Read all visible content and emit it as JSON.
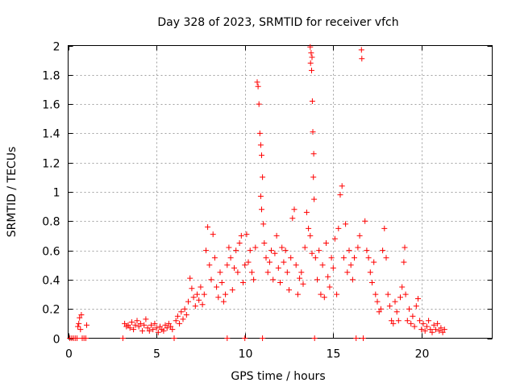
{
  "chart_data": {
    "type": "scatter",
    "title": "Day 328 of 2023, SRMTID for receiver vfch",
    "xlabel": "GPS time / hours",
    "ylabel": "SRMTID / TECUs",
    "xlim": [
      0,
      24
    ],
    "ylim": [
      0,
      2
    ],
    "xticks": [
      0,
      5,
      10,
      15,
      20
    ],
    "xtick_labels": [
      "0",
      "5",
      "10",
      "15",
      "20"
    ],
    "yticks": [
      0,
      0.2,
      0.4,
      0.6,
      0.8,
      1,
      1.2,
      1.4,
      1.6,
      1.8,
      2
    ],
    "ytick_labels": [
      "0",
      "0.2",
      "0.4",
      "0.6",
      "0.8",
      "1",
      "1.2",
      "1.4",
      "1.6",
      "1.8",
      "2"
    ],
    "grid": true,
    "marker": "+",
    "color": "#ff0000",
    "series": [
      {
        "name": "SRMTID",
        "points": [
          [
            0.1,
            0.0
          ],
          [
            0.2,
            0.0
          ],
          [
            0.3,
            0.0
          ],
          [
            0.4,
            0.0
          ],
          [
            0.5,
            0.0
          ],
          [
            0.55,
            0.08
          ],
          [
            0.6,
            0.1
          ],
          [
            0.65,
            0.14
          ],
          [
            0.7,
            0.06
          ],
          [
            0.75,
            0.16
          ],
          [
            0.8,
            0.0
          ],
          [
            0.9,
            0.0
          ],
          [
            1.0,
            0.0
          ],
          [
            1.05,
            0.09
          ],
          [
            3.1,
            0.0
          ],
          [
            3.2,
            0.1
          ],
          [
            3.3,
            0.08
          ],
          [
            3.4,
            0.09
          ],
          [
            3.5,
            0.07
          ],
          [
            3.6,
            0.11
          ],
          [
            3.7,
            0.06
          ],
          [
            3.8,
            0.09
          ],
          [
            3.9,
            0.12
          ],
          [
            4.0,
            0.08
          ],
          [
            4.1,
            0.1
          ],
          [
            4.2,
            0.05
          ],
          [
            4.3,
            0.09
          ],
          [
            4.4,
            0.13
          ],
          [
            4.5,
            0.07
          ],
          [
            4.6,
            0.05
          ],
          [
            4.7,
            0.09
          ],
          [
            4.8,
            0.06
          ],
          [
            4.9,
            0.1
          ],
          [
            5.0,
            0.07
          ],
          [
            5.1,
            0.04
          ],
          [
            5.2,
            0.08
          ],
          [
            5.3,
            0.06
          ],
          [
            5.4,
            0.05
          ],
          [
            5.5,
            0.09
          ],
          [
            5.6,
            0.07
          ],
          [
            5.7,
            0.1
          ],
          [
            5.8,
            0.08
          ],
          [
            5.9,
            0.06
          ],
          [
            6.0,
            0.0
          ],
          [
            6.1,
            0.12
          ],
          [
            6.2,
            0.15
          ],
          [
            6.3,
            0.1
          ],
          [
            6.4,
            0.18
          ],
          [
            6.5,
            0.13
          ],
          [
            6.6,
            0.2
          ],
          [
            6.7,
            0.16
          ],
          [
            6.8,
            0.25
          ],
          [
            6.9,
            0.41
          ],
          [
            7.0,
            0.34
          ],
          [
            7.1,
            0.28
          ],
          [
            7.2,
            0.22
          ],
          [
            7.3,
            0.3
          ],
          [
            7.4,
            0.26
          ],
          [
            7.5,
            0.35
          ],
          [
            7.6,
            0.23
          ],
          [
            7.7,
            0.3
          ],
          [
            7.8,
            0.6
          ],
          [
            7.9,
            0.76
          ],
          [
            8.0,
            0.5
          ],
          [
            8.1,
            0.4
          ],
          [
            8.2,
            0.71
          ],
          [
            8.3,
            0.55
          ],
          [
            8.4,
            0.35
          ],
          [
            8.5,
            0.28
          ],
          [
            8.6,
            0.45
          ],
          [
            8.7,
            0.38
          ],
          [
            8.8,
            0.25
          ],
          [
            8.9,
            0.3
          ],
          [
            9.0,
            0.0
          ],
          [
            9.0,
            0.5
          ],
          [
            9.1,
            0.62
          ],
          [
            9.2,
            0.55
          ],
          [
            9.3,
            0.33
          ],
          [
            9.4,
            0.48
          ],
          [
            9.5,
            0.6
          ],
          [
            9.6,
            0.45
          ],
          [
            9.7,
            0.65
          ],
          [
            9.8,
            0.7
          ],
          [
            9.9,
            0.38
          ],
          [
            10.0,
            0.0
          ],
          [
            10.0,
            0.5
          ],
          [
            10.1,
            0.71
          ],
          [
            10.2,
            0.52
          ],
          [
            10.3,
            0.6
          ],
          [
            10.4,
            0.45
          ],
          [
            10.5,
            0.4
          ],
          [
            10.6,
            0.62
          ],
          [
            10.7,
            1.75
          ],
          [
            10.75,
            1.72
          ],
          [
            10.8,
            1.6
          ],
          [
            10.85,
            1.4
          ],
          [
            10.9,
            1.32
          ],
          [
            10.95,
            1.25
          ],
          [
            11.0,
            1.1
          ],
          [
            10.9,
            0.97
          ],
          [
            10.95,
            0.88
          ],
          [
            11.0,
            0.0
          ],
          [
            11.05,
            0.78
          ],
          [
            11.1,
            0.65
          ],
          [
            11.2,
            0.55
          ],
          [
            11.3,
            0.45
          ],
          [
            11.4,
            0.52
          ],
          [
            11.5,
            0.6
          ],
          [
            11.6,
            0.4
          ],
          [
            11.7,
            0.58
          ],
          [
            11.8,
            0.7
          ],
          [
            11.9,
            0.48
          ],
          [
            12.0,
            0.38
          ],
          [
            12.1,
            0.62
          ],
          [
            12.2,
            0.52
          ],
          [
            12.3,
            0.6
          ],
          [
            12.4,
            0.45
          ],
          [
            12.5,
            0.33
          ],
          [
            12.6,
            0.55
          ],
          [
            12.7,
            0.82
          ],
          [
            12.8,
            0.88
          ],
          [
            12.9,
            0.5
          ],
          [
            13.0,
            0.3
          ],
          [
            13.1,
            0.41
          ],
          [
            13.2,
            0.45
          ],
          [
            13.3,
            0.37
          ],
          [
            13.4,
            0.62
          ],
          [
            13.5,
            0.86
          ],
          [
            13.6,
            0.75
          ],
          [
            13.7,
            0.7
          ],
          [
            13.8,
            0.58
          ],
          [
            13.7,
            1.99
          ],
          [
            13.75,
            1.95
          ],
          [
            13.8,
            1.92
          ],
          [
            13.72,
            1.88
          ],
          [
            13.78,
            1.83
          ],
          [
            13.82,
            1.62
          ],
          [
            13.85,
            1.41
          ],
          [
            13.9,
            1.26
          ],
          [
            13.88,
            1.1
          ],
          [
            13.92,
            0.95
          ],
          [
            13.95,
            0.0
          ],
          [
            14.0,
            0.55
          ],
          [
            14.1,
            0.4
          ],
          [
            14.2,
            0.6
          ],
          [
            14.3,
            0.3
          ],
          [
            14.4,
            0.5
          ],
          [
            14.5,
            0.28
          ],
          [
            14.6,
            0.65
          ],
          [
            14.7,
            0.42
          ],
          [
            14.8,
            0.35
          ],
          [
            14.9,
            0.55
          ],
          [
            15.0,
            0.48
          ],
          [
            15.1,
            0.68
          ],
          [
            15.2,
            0.3
          ],
          [
            15.3,
            0.75
          ],
          [
            15.4,
            0.98
          ],
          [
            15.5,
            1.04
          ],
          [
            15.6,
            0.55
          ],
          [
            15.7,
            0.78
          ],
          [
            15.8,
            0.45
          ],
          [
            15.9,
            0.6
          ],
          [
            16.0,
            0.5
          ],
          [
            16.1,
            0.4
          ],
          [
            16.2,
            0.55
          ],
          [
            16.3,
            0.0
          ],
          [
            16.4,
            0.62
          ],
          [
            16.5,
            0.7
          ],
          [
            16.6,
            1.97
          ],
          [
            16.62,
            1.91
          ],
          [
            16.7,
            0.0
          ],
          [
            16.8,
            0.8
          ],
          [
            16.9,
            0.6
          ],
          [
            17.0,
            0.55
          ],
          [
            17.1,
            0.45
          ],
          [
            17.2,
            0.38
          ],
          [
            17.3,
            0.52
          ],
          [
            17.4,
            0.3
          ],
          [
            17.5,
            0.25
          ],
          [
            17.6,
            0.18
          ],
          [
            17.7,
            0.2
          ],
          [
            17.8,
            0.6
          ],
          [
            17.9,
            0.75
          ],
          [
            18.0,
            0.55
          ],
          [
            18.1,
            0.3
          ],
          [
            18.2,
            0.22
          ],
          [
            18.3,
            0.12
          ],
          [
            18.4,
            0.1
          ],
          [
            18.5,
            0.25
          ],
          [
            18.6,
            0.18
          ],
          [
            18.7,
            0.12
          ],
          [
            18.8,
            0.28
          ],
          [
            18.9,
            0.35
          ],
          [
            19.0,
            0.52
          ],
          [
            19.05,
            0.62
          ],
          [
            19.1,
            0.3
          ],
          [
            19.2,
            0.12
          ],
          [
            19.3,
            0.2
          ],
          [
            19.4,
            0.1
          ],
          [
            19.5,
            0.15
          ],
          [
            19.6,
            0.08
          ],
          [
            19.7,
            0.22
          ],
          [
            19.8,
            0.27
          ],
          [
            19.9,
            0.12
          ],
          [
            20.0,
            0.06
          ],
          [
            20.1,
            0.1
          ],
          [
            20.2,
            0.05
          ],
          [
            20.3,
            0.08
          ],
          [
            20.4,
            0.12
          ],
          [
            20.5,
            0.06
          ],
          [
            20.6,
            0.04
          ],
          [
            20.7,
            0.09
          ],
          [
            20.8,
            0.06
          ],
          [
            20.9,
            0.1
          ],
          [
            21.0,
            0.05
          ],
          [
            21.1,
            0.07
          ],
          [
            21.2,
            0.04
          ],
          [
            21.3,
            0.06
          ]
        ]
      }
    ]
  }
}
